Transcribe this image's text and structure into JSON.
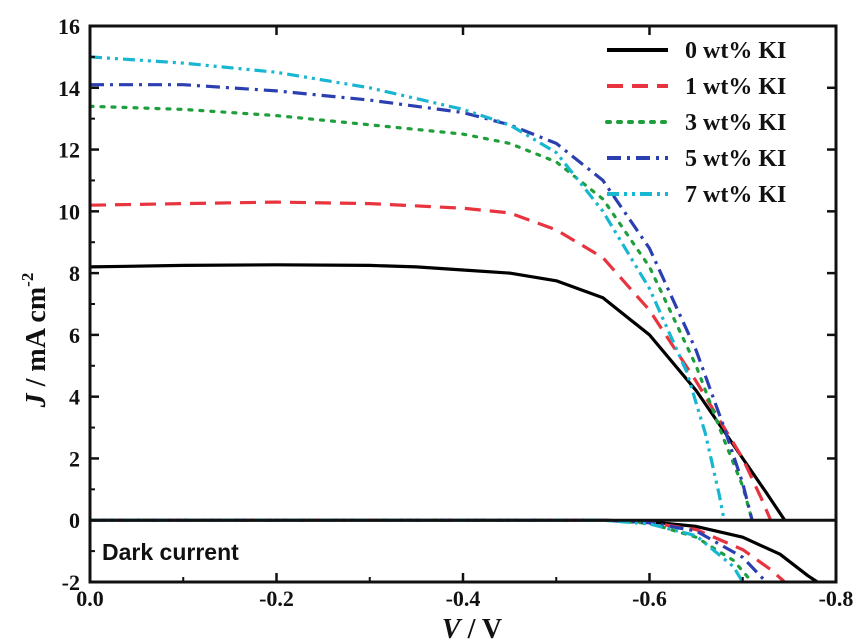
{
  "chart_data": {
    "type": "line",
    "title": "",
    "xlabel": "V / V",
    "ylabel": "J / mA cm-2",
    "xlim": [
      0.0,
      -0.8
    ],
    "ylim": [
      -2,
      16
    ],
    "xticks": [
      "0.0",
      "-0.2",
      "-0.4",
      "-0.6",
      "-0.8"
    ],
    "yticks": [
      "-2",
      "0",
      "2",
      "4",
      "6",
      "8",
      "10",
      "12",
      "14",
      "16"
    ],
    "grid": false,
    "legend_position": "top-right",
    "annotation": "Dark current",
    "series": [
      {
        "name": "0 wt% KI",
        "color": "#000000",
        "dash": "solid",
        "light": [
          [
            0.0,
            8.2
          ],
          [
            -0.1,
            8.25
          ],
          [
            -0.2,
            8.27
          ],
          [
            -0.3,
            8.25
          ],
          [
            -0.35,
            8.2
          ],
          [
            -0.4,
            8.1
          ],
          [
            -0.45,
            8.0
          ],
          [
            -0.5,
            7.75
          ],
          [
            -0.55,
            7.2
          ],
          [
            -0.6,
            6.0
          ],
          [
            -0.65,
            4.2
          ],
          [
            -0.7,
            2.0
          ],
          [
            -0.725,
            0.9
          ],
          [
            -0.745,
            0.0
          ]
        ],
        "dark": [
          [
            0.0,
            0.0
          ],
          [
            -0.4,
            0.0
          ],
          [
            -0.55,
            0.0
          ],
          [
            -0.6,
            -0.05
          ],
          [
            -0.65,
            -0.2
          ],
          [
            -0.7,
            -0.55
          ],
          [
            -0.74,
            -1.1
          ],
          [
            -0.77,
            -1.8
          ],
          [
            -0.78,
            -2.0
          ]
        ]
      },
      {
        "name": "1 wt% KI",
        "color": "#e8343f",
        "dash": "dashed",
        "light": [
          [
            0.0,
            10.2
          ],
          [
            -0.1,
            10.25
          ],
          [
            -0.2,
            10.3
          ],
          [
            -0.3,
            10.25
          ],
          [
            -0.4,
            10.1
          ],
          [
            -0.45,
            9.95
          ],
          [
            -0.5,
            9.4
          ],
          [
            -0.55,
            8.5
          ],
          [
            -0.6,
            6.8
          ],
          [
            -0.65,
            4.5
          ],
          [
            -0.7,
            2.0
          ],
          [
            -0.72,
            0.7
          ],
          [
            -0.73,
            0.0
          ]
        ],
        "dark": [
          [
            0.0,
            0.0
          ],
          [
            -0.55,
            0.0
          ],
          [
            -0.6,
            -0.08
          ],
          [
            -0.65,
            -0.3
          ],
          [
            -0.7,
            -0.95
          ],
          [
            -0.73,
            -1.6
          ],
          [
            -0.745,
            -2.0
          ]
        ]
      },
      {
        "name": "3 wt% KI",
        "color": "#1f9e3c",
        "dash": "dotted",
        "light": [
          [
            0.0,
            13.4
          ],
          [
            -0.1,
            13.3
          ],
          [
            -0.2,
            13.1
          ],
          [
            -0.3,
            12.8
          ],
          [
            -0.4,
            12.5
          ],
          [
            -0.45,
            12.2
          ],
          [
            -0.5,
            11.6
          ],
          [
            -0.55,
            10.4
          ],
          [
            -0.6,
            8.2
          ],
          [
            -0.65,
            5.0
          ],
          [
            -0.68,
            2.6
          ],
          [
            -0.7,
            1.1
          ],
          [
            -0.71,
            0.0
          ]
        ],
        "dark": [
          [
            0.0,
            0.0
          ],
          [
            -0.55,
            0.0
          ],
          [
            -0.6,
            -0.1
          ],
          [
            -0.65,
            -0.55
          ],
          [
            -0.69,
            -1.3
          ],
          [
            -0.71,
            -2.0
          ]
        ]
      },
      {
        "name": "5 wt% KI",
        "color": "#2b3fb0",
        "dash": "dash-dot",
        "light": [
          [
            0.0,
            14.1
          ],
          [
            -0.1,
            14.1
          ],
          [
            -0.2,
            13.9
          ],
          [
            -0.3,
            13.6
          ],
          [
            -0.4,
            13.2
          ],
          [
            -0.45,
            12.8
          ],
          [
            -0.5,
            12.2
          ],
          [
            -0.55,
            11.0
          ],
          [
            -0.6,
            8.8
          ],
          [
            -0.65,
            5.5
          ],
          [
            -0.68,
            3.0
          ],
          [
            -0.7,
            1.2
          ],
          [
            -0.71,
            0.0
          ]
        ],
        "dark": [
          [
            0.0,
            0.0
          ],
          [
            -0.55,
            0.0
          ],
          [
            -0.6,
            -0.08
          ],
          [
            -0.65,
            -0.35
          ],
          [
            -0.7,
            -1.2
          ],
          [
            -0.725,
            -2.0
          ]
        ]
      },
      {
        "name": "7 wt% KI",
        "color": "#17b6d1",
        "dash": "dash-dot-dot",
        "light": [
          [
            0.0,
            15.0
          ],
          [
            -0.1,
            14.8
          ],
          [
            -0.2,
            14.5
          ],
          [
            -0.3,
            14.0
          ],
          [
            -0.4,
            13.3
          ],
          [
            -0.45,
            12.8
          ],
          [
            -0.5,
            11.9
          ],
          [
            -0.55,
            10.0
          ],
          [
            -0.6,
            7.5
          ],
          [
            -0.64,
            4.8
          ],
          [
            -0.66,
            2.8
          ],
          [
            -0.675,
            0.8
          ],
          [
            -0.68,
            0.0
          ]
        ],
        "dark": [
          [
            0.0,
            0.0
          ],
          [
            -0.55,
            0.0
          ],
          [
            -0.6,
            -0.12
          ],
          [
            -0.65,
            -0.5
          ],
          [
            -0.69,
            -1.5
          ],
          [
            -0.7,
            -2.0
          ]
        ]
      }
    ]
  }
}
